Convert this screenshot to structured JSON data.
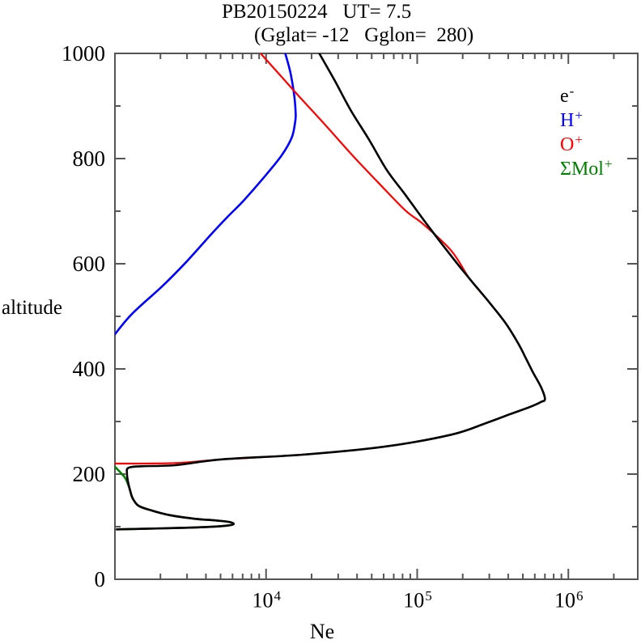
{
  "window": {
    "background": "#ffffff",
    "frame_color": "#555555"
  },
  "chart_data": {
    "type": "line",
    "title": "PB20150224   UT= 7.5",
    "subtitle": "(Gglat= -12   Gglon=  280)",
    "xlabel": "Ne",
    "ylabel": "altitude",
    "x_scale": "log",
    "y_scale": "linear",
    "xlim": [
      1000,
      2880000
    ],
    "ylim": [
      0,
      1000
    ],
    "grid": false,
    "tick_style": "inward, mirrored on all four sides",
    "x_labeled_ticks": [
      {
        "base": "10",
        "exp": "4",
        "value": 10000
      },
      {
        "base": "10",
        "exp": "5",
        "value": 100000
      },
      {
        "base": "10",
        "exp": "6",
        "value": 1000000
      }
    ],
    "y_labeled_ticks": [
      {
        "text": "0",
        "value": 0
      },
      {
        "text": "200",
        "value": 200
      },
      {
        "text": "400",
        "value": 400
      },
      {
        "text": "600",
        "value": 600
      },
      {
        "text": "800",
        "value": 800
      },
      {
        "text": "1000",
        "value": 1000
      }
    ],
    "y_minor_tick_step": 100,
    "legend_position": "inside-right-top",
    "legend": [
      {
        "label": "e",
        "sup": "-",
        "color": "#000000",
        "series": "electrons"
      },
      {
        "label": "H",
        "sup": "+",
        "color": "#0000ff",
        "series": "H+"
      },
      {
        "label": "O",
        "sup": "+",
        "color": "#ff0000",
        "series": "O+"
      },
      {
        "label": "ΣMol",
        "sup": "+",
        "color": "#008000",
        "series": "molecular-ions"
      }
    ],
    "series": [
      {
        "name": "molecular-ions",
        "color": "#008000",
        "units": {
          "x": "cm^-3",
          "y": "km"
        },
        "points": [
          [
            1000,
            214
          ],
          [
            1160,
            194
          ],
          [
            1230,
            178
          ],
          [
            1260,
            169
          ],
          [
            1310,
            154
          ],
          [
            1430,
            140
          ],
          [
            1700,
            132
          ],
          [
            2300,
            122
          ],
          [
            3400,
            115
          ],
          [
            4600,
            112
          ],
          [
            5700,
            109
          ],
          [
            6100,
            105
          ],
          [
            5500,
            102
          ],
          [
            3800,
            99
          ],
          [
            2100,
            97
          ],
          [
            1030,
            95
          ]
        ]
      },
      {
        "name": "H+",
        "color": "#0000ff",
        "units": {
          "x": "cm^-3",
          "y": "km"
        },
        "points": [
          [
            1000,
            466
          ],
          [
            1300,
            505
          ],
          [
            2070,
            558
          ],
          [
            3000,
            605
          ],
          [
            4300,
            655
          ],
          [
            5600,
            690
          ],
          [
            7100,
            720
          ],
          [
            9600,
            763
          ],
          [
            12600,
            805
          ],
          [
            14800,
            840
          ],
          [
            15600,
            871
          ],
          [
            15700,
            886
          ],
          [
            15400,
            917
          ],
          [
            14500,
            963
          ],
          [
            13400,
            1000
          ]
        ]
      },
      {
        "name": "O+",
        "color": "#ff0000",
        "units": {
          "x": "cm^-3",
          "y": "km"
        },
        "points": [
          [
            1000,
            220
          ],
          [
            2500,
            221
          ],
          [
            5100,
            228
          ],
          [
            17400,
            237
          ],
          [
            60000,
            252
          ],
          [
            168000,
            275
          ],
          [
            285000,
            297
          ],
          [
            412000,
            314
          ],
          [
            561000,
            328
          ],
          [
            658000,
            337
          ],
          [
            700000,
            343
          ],
          [
            658000,
            366
          ],
          [
            582000,
            394
          ],
          [
            514000,
            425
          ],
          [
            467000,
            448
          ],
          [
            387000,
            486
          ],
          [
            303000,
            525
          ],
          [
            223000,
            571
          ],
          [
            168000,
            625
          ],
          [
            110000,
            675
          ],
          [
            83000,
            702
          ],
          [
            55000,
            755
          ],
          [
            36500,
            809
          ],
          [
            24300,
            866
          ],
          [
            16200,
            921
          ],
          [
            12000,
            963
          ],
          [
            9200,
            1000
          ]
        ]
      },
      {
        "name": "electrons",
        "color": "#000000",
        "units": {
          "x": "cm^-3",
          "y": "km"
        },
        "points": [
          [
            1030,
            95
          ],
          [
            2100,
            97
          ],
          [
            3800,
            99
          ],
          [
            5500,
            102
          ],
          [
            6100,
            105
          ],
          [
            5700,
            109
          ],
          [
            4600,
            112
          ],
          [
            3400,
            115
          ],
          [
            2300,
            122
          ],
          [
            1700,
            132
          ],
          [
            1430,
            140
          ],
          [
            1310,
            154
          ],
          [
            1260,
            169
          ],
          [
            1220,
            186
          ],
          [
            1200,
            202
          ],
          [
            1230,
            212
          ],
          [
            1500,
            215
          ],
          [
            2500,
            217
          ],
          [
            5100,
            228
          ],
          [
            17400,
            237
          ],
          [
            60000,
            252
          ],
          [
            168000,
            275
          ],
          [
            285000,
            297
          ],
          [
            412000,
            314
          ],
          [
            561000,
            328
          ],
          [
            658000,
            337
          ],
          [
            700000,
            343
          ],
          [
            658000,
            366
          ],
          [
            582000,
            394
          ],
          [
            514000,
            425
          ],
          [
            467000,
            448
          ],
          [
            387000,
            486
          ],
          [
            303000,
            525
          ],
          [
            223000,
            571
          ],
          [
            174000,
            609
          ],
          [
            116000,
            675
          ],
          [
            83000,
            732
          ],
          [
            63000,
            778
          ],
          [
            47800,
            837
          ],
          [
            36500,
            891
          ],
          [
            28500,
            948
          ],
          [
            22500,
            1000
          ]
        ]
      }
    ]
  }
}
